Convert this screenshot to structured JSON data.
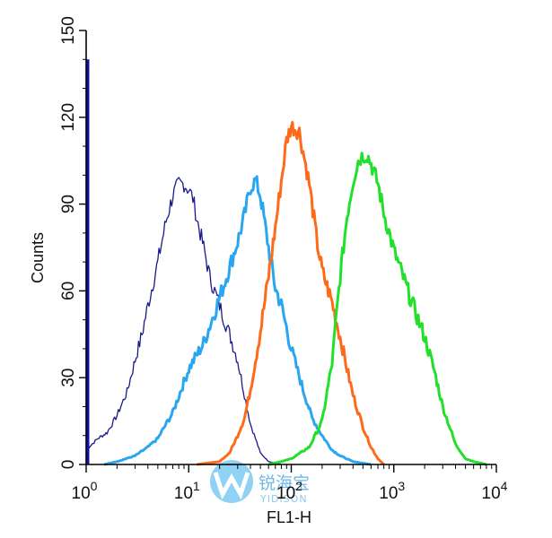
{
  "chart_data": {
    "type": "area",
    "xlabel": "FL1-H",
    "ylabel": "Counts",
    "x_scale": "log",
    "xlim": [
      1,
      10000
    ],
    "ylim": [
      0,
      150
    ],
    "grid": false,
    "y_ticks": [
      0,
      30,
      60,
      90,
      120,
      150
    ],
    "y_tick_labels": [
      "0",
      "30",
      "60",
      "90",
      "120",
      "150"
    ],
    "x_ticks": [
      1,
      10,
      100,
      1000,
      10000
    ],
    "x_tick_labels": [
      {
        "base": "10",
        "exp": "0"
      },
      {
        "base": "10",
        "exp": "1"
      },
      {
        "base": "10",
        "exp": "2"
      },
      {
        "base": "10",
        "exp": "3"
      },
      {
        "base": "10",
        "exp": "4"
      }
    ],
    "series": [
      {
        "color": "#1a1a8c",
        "stroke_width": 1.3,
        "x": [
          1,
          1.3,
          1.6,
          2,
          2.5,
          3,
          3.5,
          4,
          5,
          6,
          7,
          8,
          9,
          10,
          11,
          12,
          14,
          16,
          20,
          25,
          30,
          35,
          40,
          50,
          60,
          80
        ],
        "y": [
          5,
          9,
          11,
          17,
          25,
          36,
          45,
          55,
          70,
          84,
          93,
          97,
          97,
          95,
          92,
          85,
          75,
          65,
          55,
          45,
          36,
          24,
          14,
          4,
          1,
          0
        ]
      },
      {
        "color": "#2aa6f0",
        "stroke_width": 3,
        "x": [
          1.5,
          2,
          3,
          4,
          5,
          7,
          10,
          14,
          18,
          22,
          26,
          30,
          35,
          40,
          45,
          50,
          60,
          70,
          80,
          100,
          130,
          160,
          200,
          250,
          300,
          400,
          600
        ],
        "y": [
          0,
          1,
          3,
          6,
          9,
          18,
          33,
          42,
          53,
          62,
          70,
          77,
          86,
          96,
          98,
          93,
          75,
          61,
          55,
          40,
          26,
          16,
          10,
          5,
          3,
          1,
          0
        ]
      },
      {
        "color": "#ff6a1a",
        "stroke_width": 3,
        "x": [
          12,
          20,
          25,
          30,
          35,
          40,
          50,
          60,
          70,
          80,
          90,
          100,
          120,
          150,
          180,
          200,
          250,
          300,
          350,
          400,
          500,
          600,
          700,
          800
        ],
        "y": [
          0,
          1,
          4,
          10,
          16,
          26,
          46,
          65,
          82,
          98,
          112,
          117,
          115,
          97,
          76,
          67,
          56,
          44,
          33,
          24,
          13,
          6,
          2,
          0
        ]
      },
      {
        "color": "#22e02a",
        "stroke_width": 3,
        "x": [
          60,
          80,
          100,
          150,
          200,
          250,
          300,
          350,
          400,
          450,
          500,
          550,
          600,
          700,
          800,
          1000,
          1200,
          1500,
          2000,
          2500,
          3000,
          4000,
          5000,
          6000,
          8000
        ],
        "y": [
          0,
          1,
          2,
          6,
          15,
          35,
          65,
          86,
          98,
          105,
          107,
          107,
          104,
          97,
          87,
          74,
          66,
          56,
          44,
          32,
          20,
          7,
          2,
          1,
          0
        ]
      }
    ],
    "baseline_spike": {
      "color": "#1010a8",
      "x": 1,
      "y": 140
    }
  },
  "watermark": {
    "cn_text": "锐海宝",
    "en_text": "YIDISON"
  }
}
